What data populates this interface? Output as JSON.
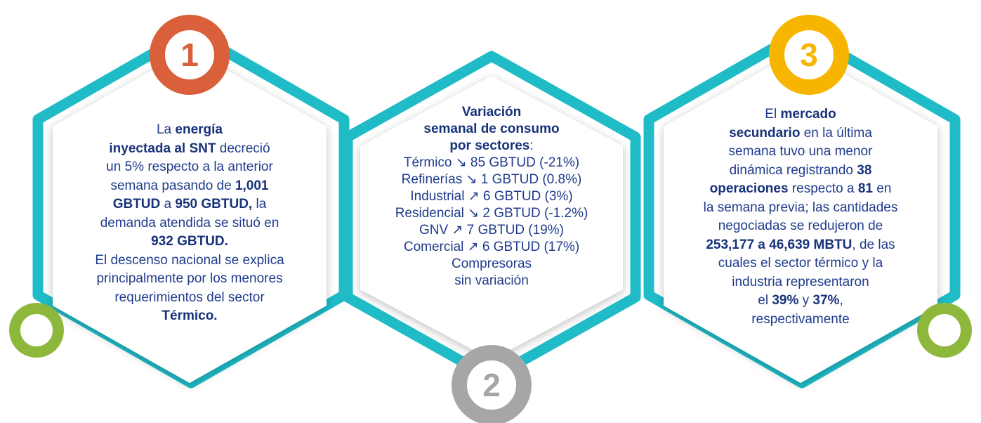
{
  "panels": [
    {
      "number": "1",
      "color": "#d9603b",
      "lines": [
        [
          {
            "text": "La "
          },
          {
            "text": "energía",
            "bold": true
          }
        ],
        [
          {
            "text": "inyectada al SNT",
            "bold": true
          },
          {
            "text": " decreció"
          }
        ],
        [
          {
            "text": "un 5% respecto a la anterior"
          }
        ],
        [
          {
            "text": "semana pasando de "
          },
          {
            "text": "1,001",
            "bold": true
          }
        ],
        [
          {
            "text": "GBTUD",
            "bold": true
          },
          {
            "text": " a "
          },
          {
            "text": "950 GBTUD,",
            "bold": true
          },
          {
            "text": " la"
          }
        ],
        [
          {
            "text": "demanda atendida se situó en"
          }
        ],
        [
          {
            "text": "932 GBTUD.",
            "bold": true
          }
        ],
        [
          {
            "text": "El descenso nacional se explica"
          }
        ],
        [
          {
            "text": "principalmente por los menores"
          }
        ],
        [
          {
            "text": "requerimientos del sector"
          }
        ],
        [
          {
            "text": "Térmico.",
            "bold": true
          }
        ]
      ]
    },
    {
      "number": "2",
      "color": "#a6a6a6",
      "lines": [
        [
          {
            "text": "Variación",
            "bold": true
          }
        ],
        [
          {
            "text": "semanal de consumo",
            "bold": true
          }
        ],
        [
          {
            "text": "por sectores",
            "bold": true
          },
          {
            "text": ":"
          }
        ],
        [
          {
            "text": "Térmico ↘ 85 GBTUD (-21%)"
          }
        ],
        [
          {
            "text": "Refinerías ↘ 1 GBTUD (0.8%)"
          }
        ],
        [
          {
            "text": "Industrial ↗ 6 GBTUD (3%)"
          }
        ],
        [
          {
            "text": "Residencial ↘ 2 GBTUD (-1.2%)"
          }
        ],
        [
          {
            "text": "GNV ↗ 7 GBTUD (19%)"
          }
        ],
        [
          {
            "text": "Comercial ↗ 6 GBTUD (17%)"
          }
        ],
        [
          {
            "text": "Compresoras"
          }
        ],
        [
          {
            "text": "sin variación"
          }
        ]
      ]
    },
    {
      "number": "3",
      "color": "#f7b500",
      "lines": [
        [
          {
            "text": "El "
          },
          {
            "text": "mercado",
            "bold": true
          }
        ],
        [
          {
            "text": "secundario",
            "bold": true
          },
          {
            "text": " en la última"
          }
        ],
        [
          {
            "text": "semana tuvo una menor"
          }
        ],
        [
          {
            "text": "dinámica registrando "
          },
          {
            "text": "38",
            "bold": true
          }
        ],
        [
          {
            "text": "operaciones",
            "bold": true
          },
          {
            "text": " respecto a "
          },
          {
            "text": "81",
            "bold": true
          },
          {
            "text": " en"
          }
        ],
        [
          {
            "text": "la semana previa; las cantidades"
          }
        ],
        [
          {
            "text": "negociadas se redujeron de"
          }
        ],
        [
          {
            "text": "253,177 a 46,639 MBTU",
            "bold": true
          },
          {
            "text": ", de las"
          }
        ],
        [
          {
            "text": "cuales el sector térmico y la"
          }
        ],
        [
          {
            "text": "industria representaron"
          }
        ],
        [
          {
            "text": "el "
          },
          {
            "text": "39%",
            "bold": true
          },
          {
            "text": " y "
          },
          {
            "text": "37%",
            "bold": true
          },
          {
            "text": ","
          }
        ],
        [
          {
            "text": "respectivamente"
          }
        ]
      ]
    }
  ]
}
